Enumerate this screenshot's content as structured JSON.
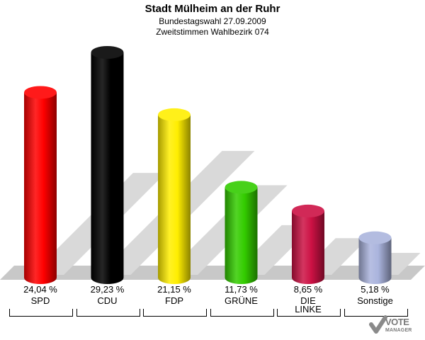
{
  "header": {
    "title": "Stadt Mülheim an der Ruhr",
    "subtitle_line1": "Bundestagswahl 27.09.2009",
    "subtitle_line2": "Zweitstimmen Wahlbezirk 074"
  },
  "chart_data": {
    "type": "bar",
    "title": "Stadt Mülheim an der Ruhr",
    "categories": [
      "SPD",
      "CDU",
      "FDP",
      "GRÜNE",
      "DIE LINKE",
      "Sonstige"
    ],
    "values": [
      24.04,
      29.23,
      21.15,
      11.73,
      8.65,
      5.18
    ],
    "value_labels": [
      "24,04 %",
      "29,23 %",
      "21,15 %",
      "11,73 %",
      "8,65 %",
      "5,18 %"
    ],
    "colors": [
      "#ff0000",
      "#000000",
      "#ffee00",
      "#33cc00",
      "#cc1144",
      "#aab4dd"
    ],
    "xlabel": "",
    "ylabel": "",
    "ylim": [
      0,
      30
    ],
    "grid": false,
    "legend": "none"
  },
  "logo": {
    "line1": "VOTE",
    "line2": "MANAGER"
  }
}
